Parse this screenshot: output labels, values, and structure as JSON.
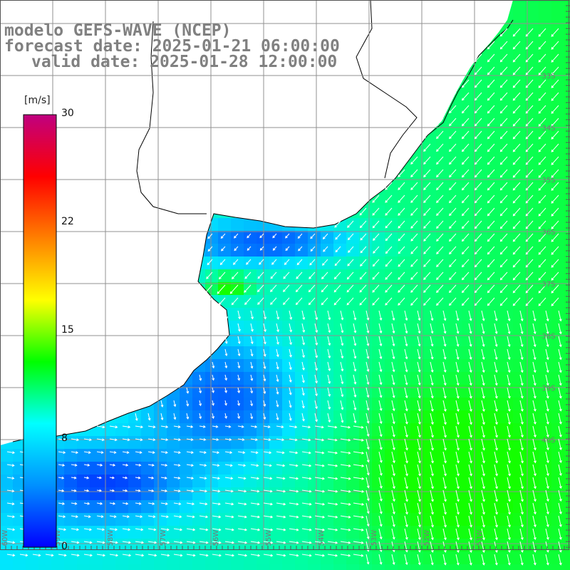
{
  "title": {
    "line1": "modelo GEFS-WAVE (NCEP)",
    "line2": "forecast date: 2025-01-21 06:00:00",
    "line3": "valid date: 2025-01-28 12:00:00"
  },
  "colorbar": {
    "unit": "[m/s]",
    "ticks": [
      "30",
      "22",
      "15",
      "8",
      "0"
    ],
    "colors": [
      "#0000ff",
      "#0090ff",
      "#00ffff",
      "#00ff00",
      "#ffff00",
      "#ff8000",
      "#ff0000",
      "#c00080"
    ]
  },
  "map": {
    "land_color": "#ffffff",
    "grid_color": "#909090",
    "coast_color": "#000000",
    "lat_labels": [
      "33S",
      "34S",
      "35S",
      "36S",
      "37S",
      "38S",
      "39S",
      "40S"
    ],
    "lon_labels": [
      "60W",
      "59W",
      "58W",
      "57W",
      "56W",
      "55W",
      "54W",
      "53W",
      "52W",
      "51W"
    ]
  }
}
